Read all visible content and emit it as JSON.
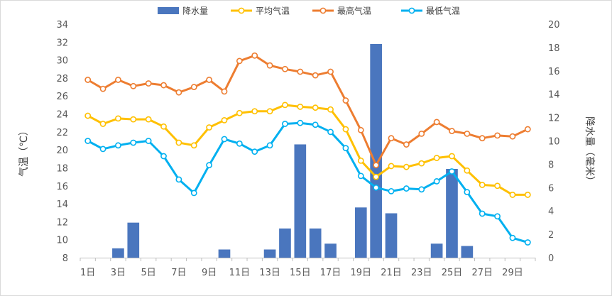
{
  "chart_data": {
    "type": "bar+line",
    "categories": [
      "1日",
      "2日",
      "3日",
      "4日",
      "5日",
      "6日",
      "7日",
      "8日",
      "9日",
      "10日",
      "11日",
      "12日",
      "13日",
      "14日",
      "15日",
      "16日",
      "17日",
      "18日",
      "19日",
      "20日",
      "21日",
      "22日",
      "23日",
      "24日",
      "25日",
      "26日",
      "27日",
      "28日",
      "29日",
      "30日"
    ],
    "x_tick_labels": [
      "1日",
      "3日",
      "5日",
      "7日",
      "9日",
      "11日",
      "13日",
      "15日",
      "17日",
      "19日",
      "21日",
      "23日",
      "25日",
      "27日",
      "29日"
    ],
    "y_left": {
      "label": "气温（℃）",
      "min": 8,
      "max": 34,
      "step": 2,
      "ticks": [
        "8",
        "10",
        "12",
        "14",
        "16",
        "18",
        "20",
        "22",
        "24",
        "26",
        "28",
        "30",
        "32",
        "34"
      ]
    },
    "y_right": {
      "label": "降水量（毫米）",
      "min": 0,
      "max": 20,
      "step": 2,
      "ticks": [
        "0",
        "2",
        "4",
        "6",
        "8",
        "10",
        "12",
        "14",
        "16",
        "18",
        "20"
      ]
    },
    "series": [
      {
        "name": "降水量",
        "kind": "bar",
        "axis": "right",
        "color": "#4a76be",
        "values": [
          0,
          0,
          0.8,
          3.0,
          0,
          0,
          0,
          0,
          0,
          0.7,
          0,
          0,
          0.7,
          2.5,
          9.7,
          2.5,
          1.2,
          0,
          4.3,
          18.3,
          3.8,
          0,
          0,
          1.2,
          7.6,
          1.0,
          0,
          0,
          0,
          0
        ]
      },
      {
        "name": "平均气温",
        "kind": "line",
        "axis": "left",
        "color": "#ffc000",
        "values": [
          23.8,
          22.9,
          23.5,
          23.4,
          23.4,
          22.6,
          20.8,
          20.5,
          22.5,
          23.3,
          24.1,
          24.3,
          24.3,
          25.0,
          24.8,
          24.7,
          24.5,
          22.3,
          18.8,
          17.0,
          18.2,
          18.1,
          18.5,
          19.1,
          19.3,
          17.7,
          16.1,
          16.0,
          15.0,
          15.0
        ]
      },
      {
        "name": "最高气温",
        "kind": "line",
        "axis": "left",
        "color": "#ed7d31",
        "values": [
          27.8,
          26.8,
          27.8,
          27.1,
          27.4,
          27.2,
          26.4,
          27.0,
          27.8,
          26.5,
          29.9,
          30.5,
          29.4,
          29.0,
          28.7,
          28.3,
          28.7,
          25.5,
          22.2,
          18.3,
          21.3,
          20.6,
          21.8,
          23.1,
          22.1,
          21.8,
          21.3,
          21.6,
          21.5,
          22.3
        ]
      },
      {
        "name": "最低气温",
        "kind": "line",
        "axis": "left",
        "color": "#00b0f0",
        "values": [
          21.0,
          20.1,
          20.5,
          20.8,
          21.0,
          19.3,
          16.7,
          15.2,
          18.3,
          21.2,
          20.7,
          19.8,
          20.5,
          22.9,
          23.0,
          22.8,
          22.0,
          20.2,
          17.1,
          15.8,
          15.4,
          15.7,
          15.6,
          16.5,
          17.6,
          15.3,
          12.9,
          12.6,
          10.2,
          9.7
        ]
      }
    ],
    "legend_position": "top",
    "grid": false
  }
}
